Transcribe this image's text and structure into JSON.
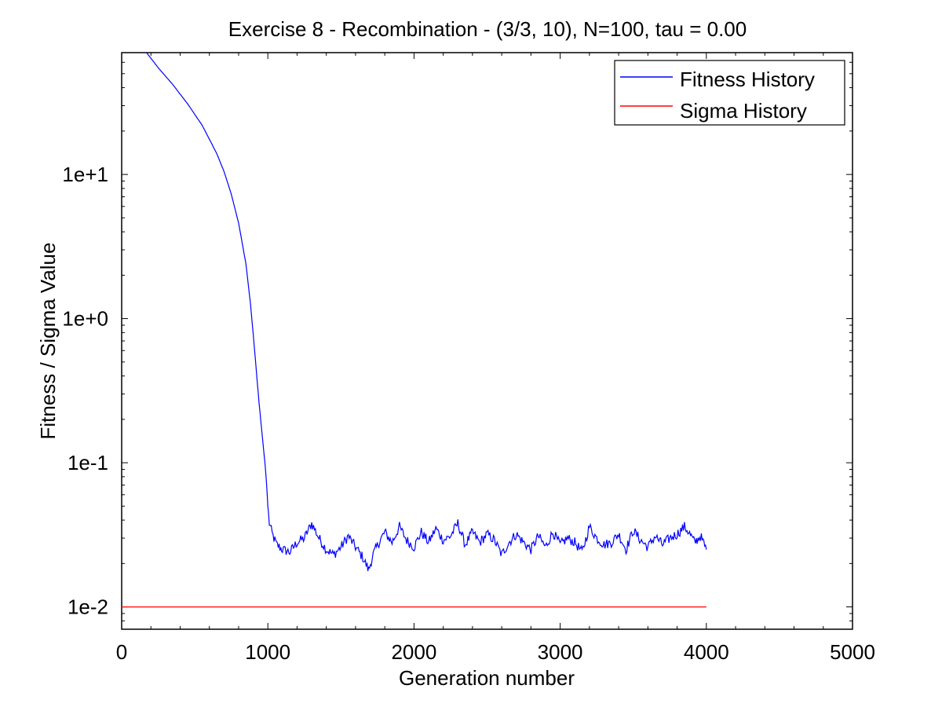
{
  "chart_data": {
    "type": "line",
    "title": "Exercise 8 - Recombination - (3/3, 10), N=100, tau = 0.00",
    "xlabel": "Generation number",
    "ylabel": "Fitness / Sigma Value",
    "xlim": [
      0,
      5000
    ],
    "ylim": [
      0.007,
      70
    ],
    "yscale": "log",
    "grid": false,
    "legend": "top-right",
    "xticks": [
      0,
      1000,
      2000,
      3000,
      4000,
      5000
    ],
    "xtick_labels": [
      "0",
      "1000",
      "2000",
      "3000",
      "4000",
      "5000"
    ],
    "yticks": [
      0.01,
      0.1,
      1,
      10
    ],
    "ytick_labels": [
      "1e-2",
      "1e-1",
      "1e+0",
      "1e+1"
    ],
    "series": [
      {
        "name": "Fitness History",
        "color": "#0000ff",
        "x": [
          170,
          250,
          350,
          450,
          550,
          650,
          700,
          750,
          800,
          850,
          880,
          900,
          920,
          940,
          960,
          980,
          990,
          1000,
          1010,
          1030,
          1060,
          1100,
          1150,
          1200,
          1250,
          1300,
          1350,
          1400,
          1450,
          1500,
          1550,
          1600,
          1650,
          1690,
          1720,
          1760,
          1800,
          1850,
          1900,
          1950,
          2000,
          2050,
          2100,
          2150,
          2200,
          2250,
          2300,
          2350,
          2400,
          2450,
          2500,
          2550,
          2600,
          2650,
          2700,
          2750,
          2800,
          2850,
          2900,
          2950,
          3000,
          3050,
          3100,
          3150,
          3200,
          3250,
          3300,
          3350,
          3400,
          3450,
          3500,
          3550,
          3600,
          3650,
          3700,
          3750,
          3800,
          3850,
          3880,
          3920,
          3960,
          4000
        ],
        "y": [
          70,
          55,
          42,
          31,
          22,
          14,
          10.5,
          7.3,
          4.6,
          2.4,
          1.3,
          0.78,
          0.45,
          0.26,
          0.16,
          0.1,
          0.075,
          0.05,
          0.038,
          0.032,
          0.027,
          0.025,
          0.024,
          0.028,
          0.03,
          0.038,
          0.03,
          0.025,
          0.023,
          0.026,
          0.031,
          0.026,
          0.022,
          0.018,
          0.023,
          0.028,
          0.033,
          0.028,
          0.036,
          0.029,
          0.026,
          0.033,
          0.028,
          0.035,
          0.029,
          0.031,
          0.038,
          0.027,
          0.033,
          0.028,
          0.032,
          0.029,
          0.023,
          0.028,
          0.032,
          0.028,
          0.025,
          0.031,
          0.026,
          0.033,
          0.027,
          0.03,
          0.028,
          0.024,
          0.036,
          0.03,
          0.027,
          0.028,
          0.032,
          0.025,
          0.034,
          0.029,
          0.026,
          0.031,
          0.027,
          0.03,
          0.032,
          0.036,
          0.033,
          0.028,
          0.031,
          0.025
        ]
      },
      {
        "name": "Sigma History",
        "color": "#ff0000",
        "x": [
          0,
          4000
        ],
        "y": [
          0.01,
          0.01
        ]
      }
    ]
  }
}
